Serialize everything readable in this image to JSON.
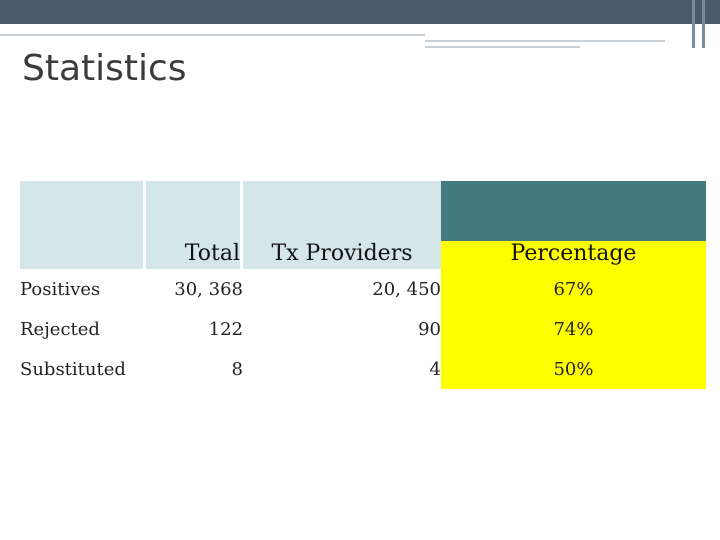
{
  "slide": {
    "title": "Statistics"
  },
  "table": {
    "headers": [
      "",
      "Total",
      "Tx Providers",
      "Percentage"
    ],
    "rows": [
      {
        "label": "Positives",
        "total": "30, 368",
        "tx_providers": "20, 450",
        "percentage": "67%"
      },
      {
        "label": "Rejected",
        "total": "122",
        "tx_providers": "90",
        "percentage": "74%"
      },
      {
        "label": "Substituted",
        "total": "8",
        "tx_providers": "4",
        "percentage": "50%"
      }
    ]
  },
  "colors": {
    "header_light": "#d4e6e8",
    "header_dark": "#437a7e",
    "highlight": "#ffff00",
    "top_bar": "#4a5a6a"
  }
}
